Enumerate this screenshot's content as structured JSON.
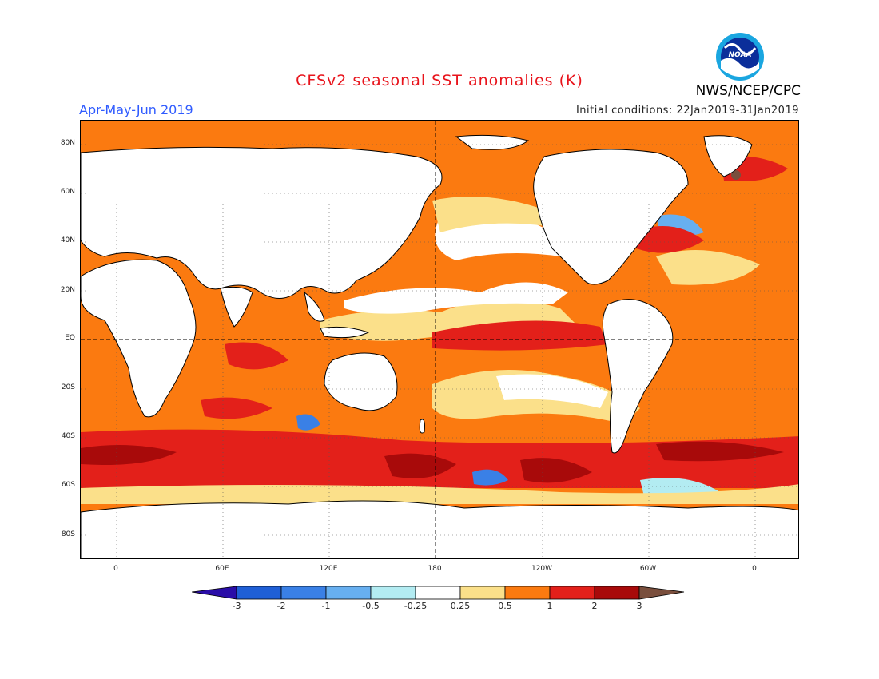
{
  "title": "CFSv2 seasonal SST anomalies (K)",
  "period": "Apr-May-Jun 2019",
  "initial_conditions": "Initial conditions: 22Jan2019-31Jan2019",
  "agency": "NWS/NCEP/CPC",
  "logo_text": "NOAA",
  "lat_labels": [
    "80N",
    "60N",
    "40N",
    "20N",
    "EQ",
    "20S",
    "40S",
    "60S",
    "80S"
  ],
  "lon_labels": [
    "0",
    "60E",
    "120E",
    "180",
    "120W",
    "60W",
    "0"
  ],
  "colorbar": {
    "labels": [
      "-3",
      "-2",
      "-1",
      "-0.5",
      "-0.25",
      "0.25",
      "0.5",
      "1",
      "2",
      "3"
    ],
    "colors": [
      "#2a0da8",
      "#1f5fd6",
      "#3a80e6",
      "#67aff0",
      "#b3ecf2",
      "#ffffff",
      "#fbe08a",
      "#fb7a10",
      "#e3201a",
      "#a80a0a",
      "#7a4f3d"
    ]
  },
  "colors": {
    "land": "#ffffff",
    "coastline": "#000000",
    "title": "#e8141c",
    "period": "#2f5bff"
  }
}
